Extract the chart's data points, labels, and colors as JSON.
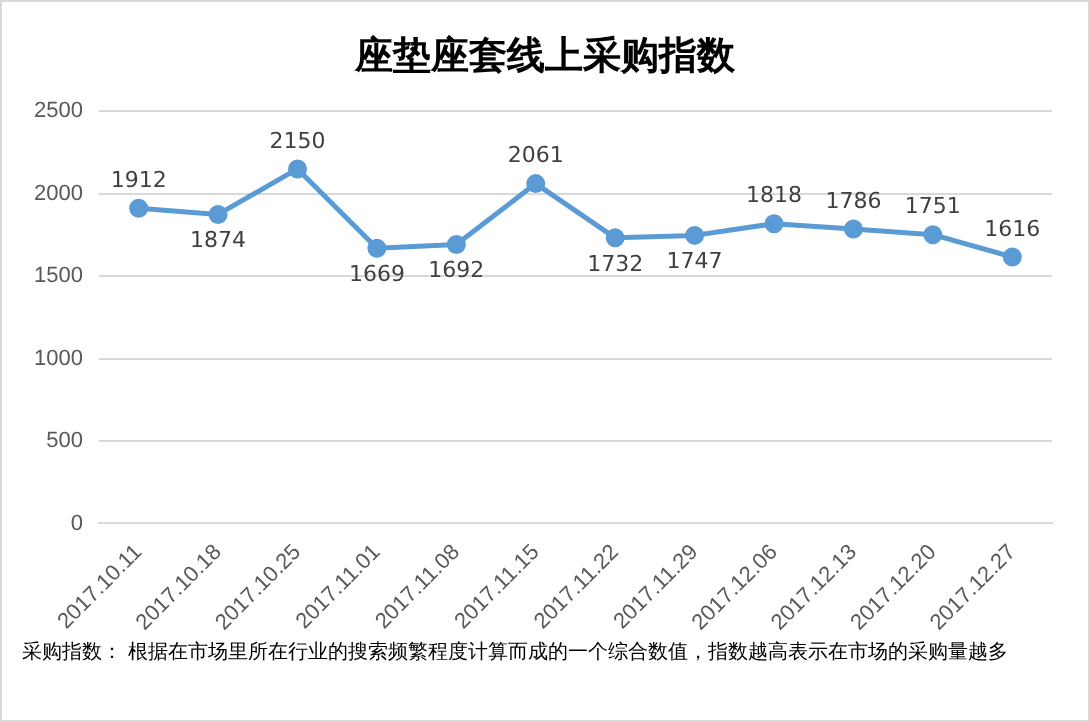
{
  "chart_data": {
    "type": "line",
    "title": "座垫座套线上采购指数",
    "categories": [
      "2017.10.11",
      "2017.10.18",
      "2017.10.25",
      "2017.11.01",
      "2017.11.08",
      "2017.11.15",
      "2017.11.22",
      "2017.11.29",
      "2017.12.06",
      "2017.12.13",
      "2017.12.20",
      "2017.12.27"
    ],
    "series": [
      {
        "color": "#5b9bd5",
        "values": [
          1912,
          1874,
          2150,
          1669,
          1692,
          2061,
          1732,
          1747,
          1818,
          1786,
          1751,
          1616
        ]
      }
    ],
    "ylim": [
      0,
      2500
    ],
    "yticks": [
      0,
      500,
      1000,
      1500,
      2000,
      2500
    ],
    "grid": "y",
    "legend": false,
    "marker": "circle",
    "line_style": "solid",
    "data_labels": true,
    "annotations": [
      "采购指数： 根据在市场里所在行业的搜索频繁程度计算而成的一个综合数值，指数越高表示在市场的采购量越多"
    ]
  }
}
